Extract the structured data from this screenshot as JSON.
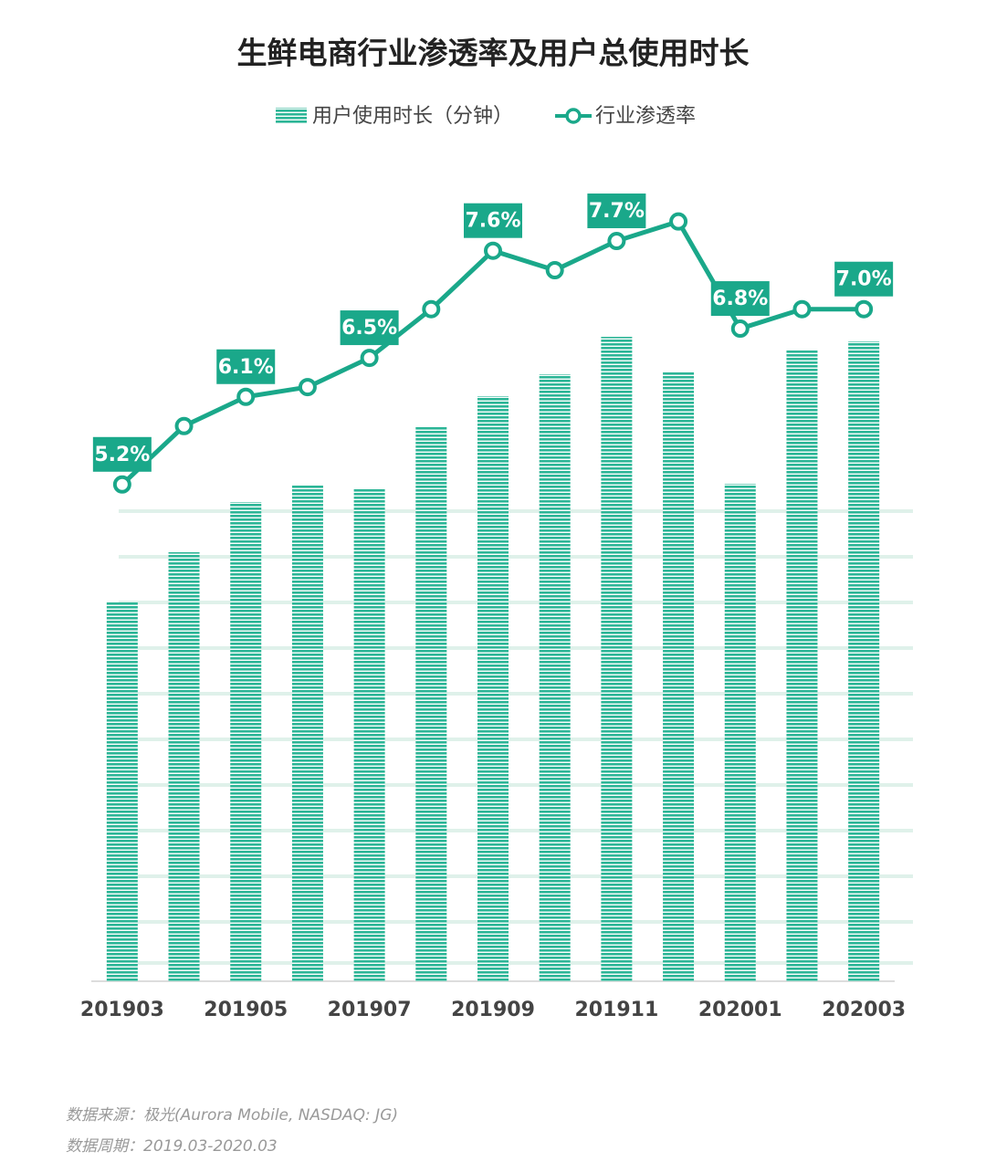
{
  "chart_data": {
    "type": "bar",
    "title": "生鲜电商行业渗透率及用户总使用时长",
    "categories": [
      "201903",
      null,
      "201905",
      null,
      "201907",
      null,
      "201909",
      null,
      "201911",
      null,
      "202001",
      null,
      "202003"
    ],
    "series": [
      {
        "name": "用户使用时长（分钟）",
        "type": "bar",
        "color": "#2bb596",
        "values": [
          415,
          470,
          525,
          543,
          540,
          608,
          641,
          665,
          706,
          667,
          545,
          691,
          701
        ]
      },
      {
        "name": "行业渗透率",
        "type": "line",
        "axis": "y2",
        "color": "#1aa88a",
        "values": [
          5.2,
          5.8,
          6.1,
          6.2,
          6.5,
          7.0,
          7.6,
          7.4,
          7.7,
          7.9,
          6.8,
          7.0,
          7.0
        ],
        "value_labels": [
          "5.2%",
          null,
          "6.1%",
          null,
          "6.5%",
          null,
          "7.6%",
          null,
          "7.7%",
          null,
          "6.8%",
          null,
          "7.0%"
        ]
      }
    ],
    "ylim": [
      0,
      875
    ],
    "y2lim": [
      0.1,
      8.3
    ],
    "footnotes": [
      "数据来源：极光(Aurora Mobile, NASDAQ: JG)",
      "数据周期：2019.03-2020.03"
    ]
  }
}
